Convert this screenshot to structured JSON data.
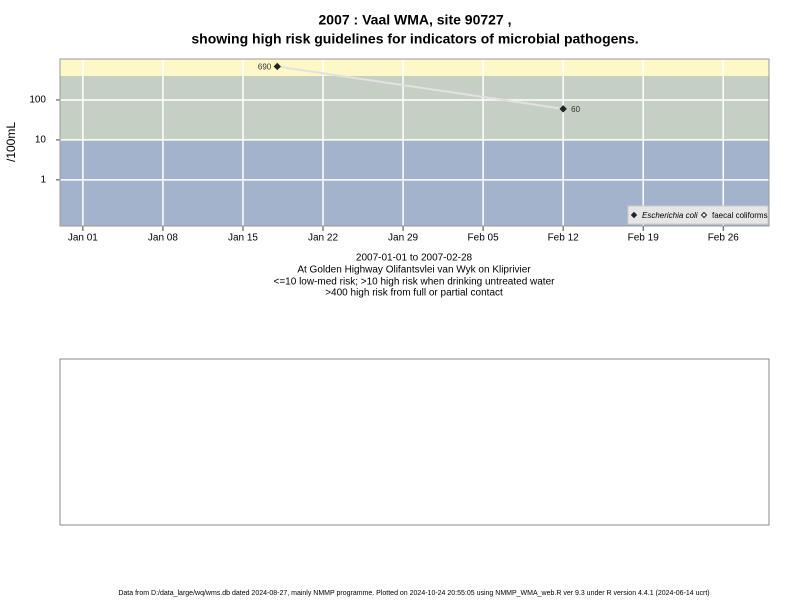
{
  "chart_data": {
    "type": "line",
    "title": [
      "2007 : Vaal WMA, site 90727 ,",
      "showing high risk guidelines for indicators of microbial pathogens."
    ],
    "y_label": "/100mL",
    "x": [
      "2007-01-18",
      "2007-02-12"
    ],
    "series": [
      {
        "name": "Escherichia coli",
        "color": "#222222",
        "values": [
          690,
          60
        ]
      },
      {
        "name": "faecal coliforms",
        "color": "#222222",
        "values": [
          null,
          null
        ]
      }
    ],
    "log_y": true,
    "ylim": [
      0.07,
      1060
    ],
    "yticks": [
      1,
      10,
      100
    ],
    "xlim": [
      "2006-12-30",
      "2007-03-02"
    ],
    "xticks": [
      {
        "value": "2007-01-01",
        "label": "Jan 01"
      },
      {
        "value": "2007-01-08",
        "label": "Jan 08"
      },
      {
        "value": "2007-01-15",
        "label": "Jan 15"
      },
      {
        "value": "2007-01-22",
        "label": "Jan 22"
      },
      {
        "value": "2007-01-29",
        "label": "Jan 29"
      },
      {
        "value": "2007-02-05",
        "label": "Feb 05"
      },
      {
        "value": "2007-02-12",
        "label": "Feb 12"
      },
      {
        "value": "2007-02-19",
        "label": "Feb 19"
      },
      {
        "value": "2007-02-26",
        "label": "Feb 26"
      }
    ],
    "thresholds": [
      10,
      400
    ],
    "band_colors": [
      "#a3b3cc",
      "#c6cfc3",
      "#fdf8c8"
    ],
    "grid": true,
    "legend": "bottom-right",
    "notes": [
      "2007-01-01 to 2007-02-28",
      "At Golden Highway Olifantsvlei van Wyk on Kliprivier",
      "<=10 low-med risk; >10 high risk when drinking untreated water",
      ">400 high risk from full or partial contact"
    ],
    "footer": "Data from D:/data_large/wq/wms.db dated 2024-08-27, mainly NMMP programme. Plotted on 2024-10-24 20:55:05 using NMMP_WMA_web.R ver 9.3 under R version 4.4.1 (2024-06-14 ucrt)"
  }
}
